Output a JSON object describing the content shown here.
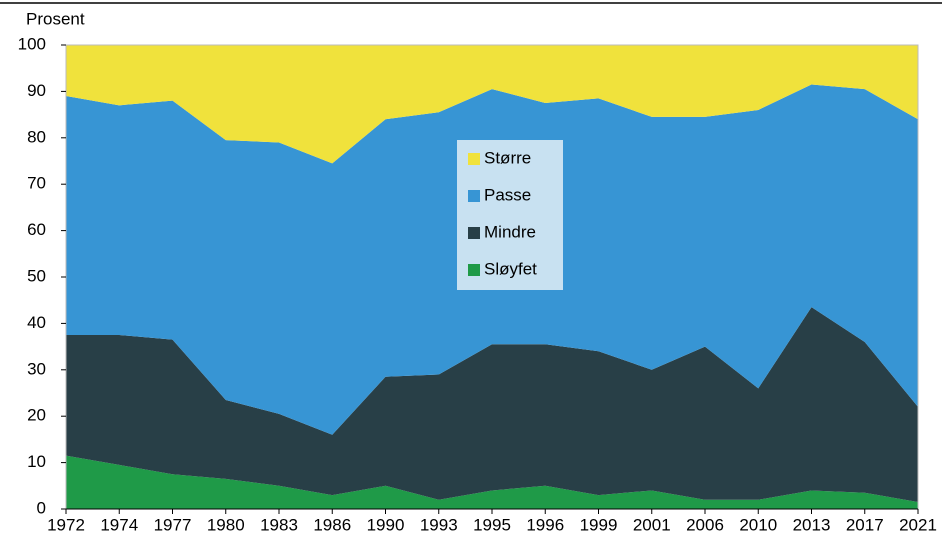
{
  "chart_data": {
    "type": "stacked_area",
    "y_label": "Prosent",
    "categories": [
      "1972",
      "1974",
      "1977",
      "1980",
      "1983",
      "1986",
      "1990",
      "1993",
      "1995",
      "1996",
      "1999",
      "2001",
      "2006",
      "2010",
      "2013",
      "2017",
      "2021"
    ],
    "series": [
      {
        "name": "Sløyfet",
        "color": "#1f9a48",
        "values": [
          11.5,
          9.5,
          7.5,
          6.5,
          5,
          3,
          5,
          2,
          4,
          5,
          3,
          4,
          2,
          2,
          4,
          3.5,
          1.5
        ]
      },
      {
        "name": "Mindre",
        "color": "#283f47",
        "values": [
          26,
          28,
          29,
          17,
          15.5,
          13,
          23.5,
          27,
          31.5,
          30.5,
          31,
          26,
          33,
          24,
          39.5,
          32.5,
          20.5
        ]
      },
      {
        "name": "Passe",
        "color": "#3795d4",
        "values": [
          51.5,
          49.5,
          51.5,
          56,
          58.5,
          58.5,
          55.5,
          56.5,
          55,
          52,
          54.5,
          54.5,
          49.5,
          60,
          48,
          54.5,
          62
        ]
      },
      {
        "name": "Større",
        "color": "#f0e23c",
        "values": [
          11,
          13,
          12,
          20.5,
          21,
          25.5,
          16,
          14.5,
          9.5,
          12.5,
          11.5,
          15.5,
          15.5,
          14,
          8.5,
          9.5,
          16
        ]
      }
    ],
    "ylim": [
      0,
      100
    ],
    "yticks": [
      0,
      10,
      20,
      30,
      40,
      50,
      60,
      70,
      80,
      90,
      100
    ],
    "grid": false
  }
}
